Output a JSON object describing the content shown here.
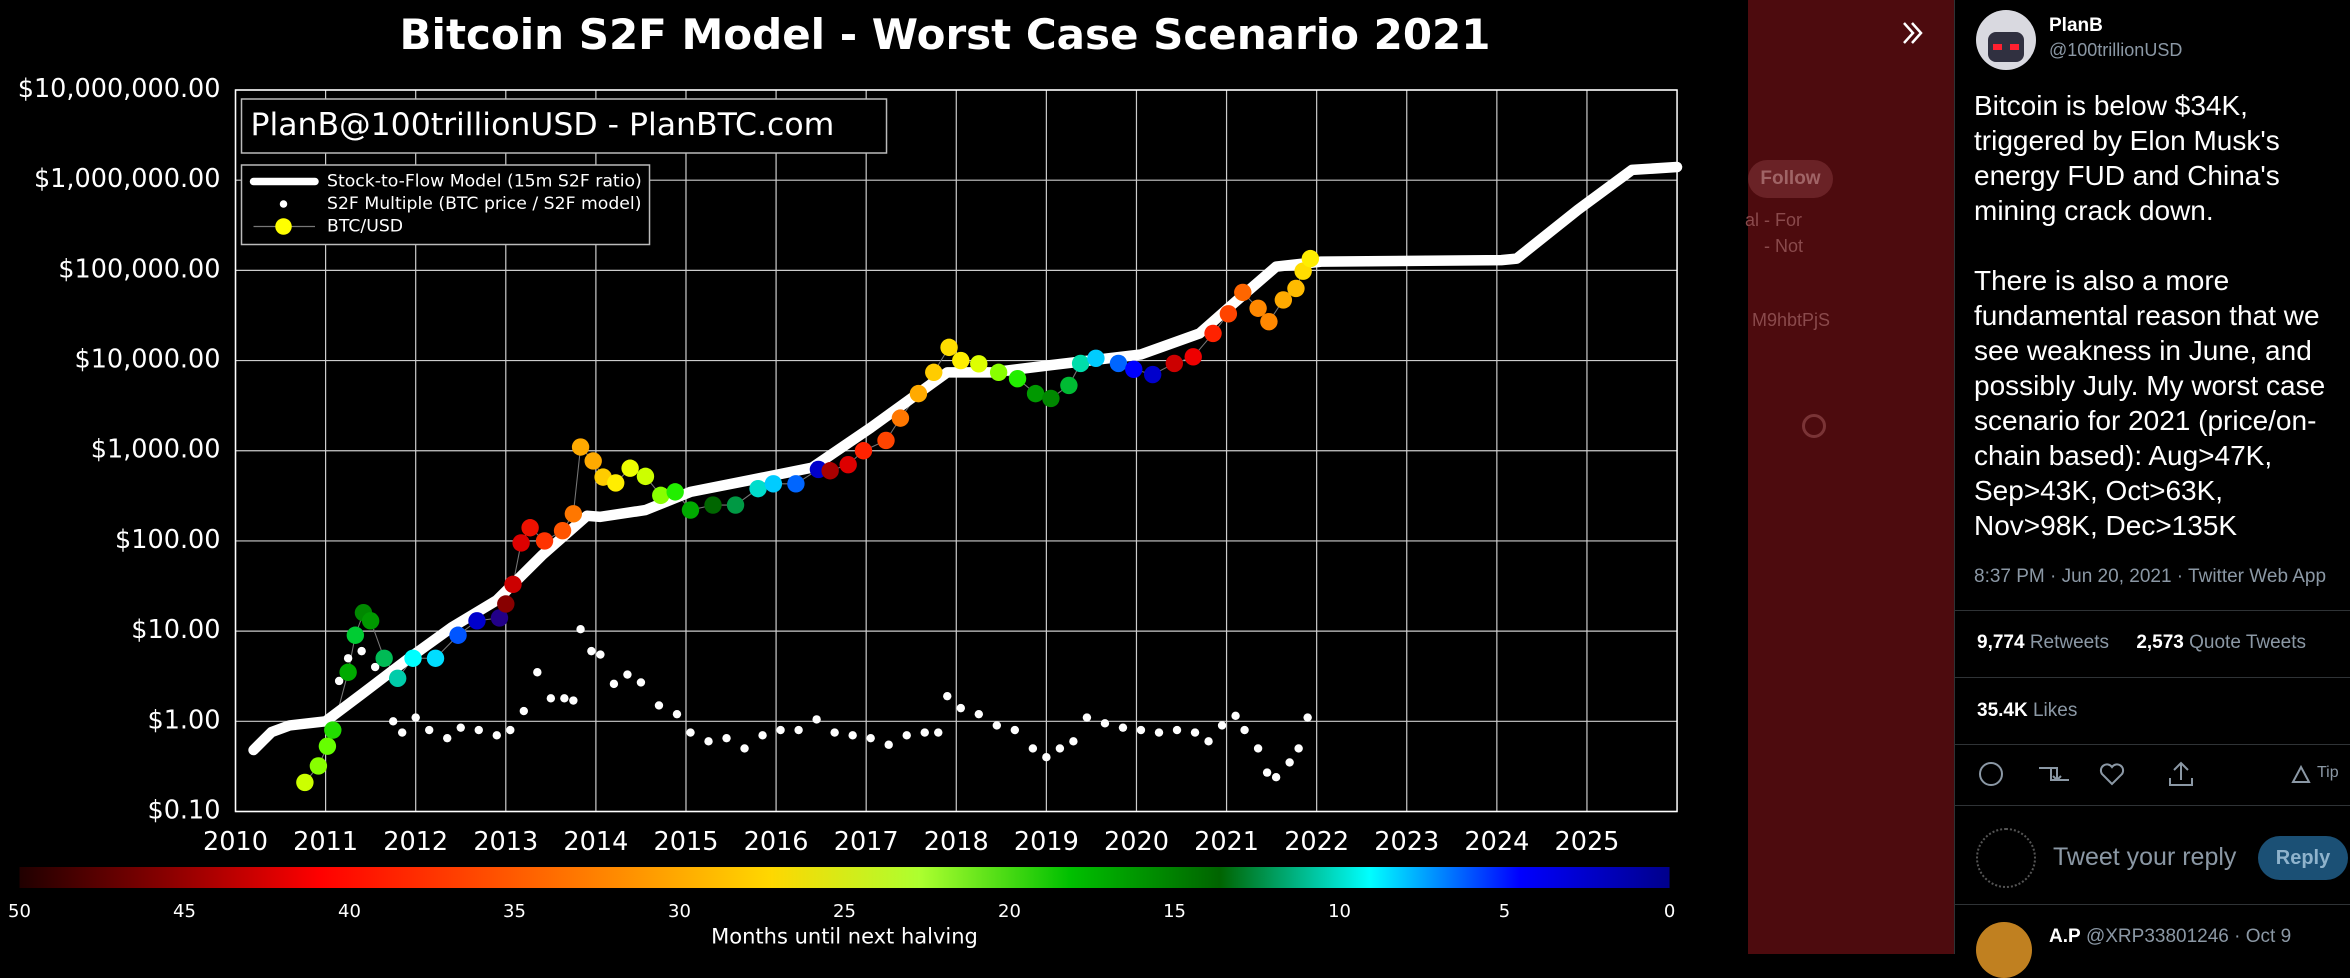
{
  "chart_data": {
    "type": "scatter",
    "title": "Bitcoin S2F Model - Worst Case Scenario 2021",
    "annotation": "PlanB@100trillionUSD - PlanBTC.com",
    "xlim": [
      2010,
      2026
    ],
    "xticks": [
      2010,
      2011,
      2012,
      2013,
      2014,
      2015,
      2016,
      2017,
      2018,
      2019,
      2020,
      2021,
      2022,
      2023,
      2024,
      2025
    ],
    "ylim": [
      0.1,
      10000000
    ],
    "yscale": "log",
    "yticks": [
      {
        "value": 0.1,
        "label": "$0.10"
      },
      {
        "value": 1,
        "label": "$1.00"
      },
      {
        "value": 10,
        "label": "$10.00"
      },
      {
        "value": 100,
        "label": "$100.00"
      },
      {
        "value": 1000,
        "label": "$1,000.00"
      },
      {
        "value": 10000,
        "label": "$10,000.00"
      },
      {
        "value": 100000,
        "label": "$100,000.00"
      },
      {
        "value": 1000000,
        "label": "$1,000,000.00"
      },
      {
        "value": 10000000,
        "label": "$10,000,000.00"
      }
    ],
    "grid": true,
    "legend": "upper left",
    "series": [
      {
        "name": "Stock-to-Flow Model (15m S2F ratio)",
        "color": "#ffffff",
        "x": [
          2010.2,
          2010.4,
          2010.6,
          2011.0,
          2011.4,
          2011.9,
          2012.4,
          2012.9,
          2013.4,
          2013.9,
          2014.05,
          2014.55,
          2015.05,
          2015.7,
          2016.4,
          2017.05,
          2017.9,
          2018.4,
          2019.05,
          2020.05,
          2020.7,
          2021.1,
          2021.55,
          2022.05,
          2024.05,
          2024.22,
          2024.9,
          2025.5,
          2026.0
        ],
        "values": [
          0.48,
          0.76,
          0.9,
          1.0,
          2.0,
          4.8,
          11,
          22,
          69,
          190,
          185,
          220,
          350,
          470,
          650,
          1800,
          7400,
          7400,
          8900,
          11700,
          20000,
          45000,
          110000,
          125000,
          130000,
          135000,
          470000,
          1300000,
          1400000
        ]
      },
      {
        "name": "S2F Multiple (BTC price / S2F model)",
        "color": "#ffffff",
        "x": [
          2011.15,
          2011.25,
          2011.4,
          2011.55,
          2011.75,
          2011.85,
          2012.0,
          2012.15,
          2012.35,
          2012.5,
          2012.7,
          2012.9,
          2013.05,
          2013.2,
          2013.35,
          2013.5,
          2013.65,
          2013.75,
          2013.83,
          2013.95,
          2014.05,
          2014.2,
          2014.35,
          2014.5,
          2014.7,
          2014.9,
          2015.05,
          2015.25,
          2015.45,
          2015.65,
          2015.85,
          2016.05,
          2016.25,
          2016.45,
          2016.65,
          2016.85,
          2017.05,
          2017.25,
          2017.45,
          2017.65,
          2017.8,
          2017.9,
          2018.05,
          2018.25,
          2018.45,
          2018.65,
          2018.85,
          2019.0,
          2019.15,
          2019.3,
          2019.45,
          2019.65,
          2019.85,
          2020.05,
          2020.25,
          2020.45,
          2020.65,
          2020.8,
          2020.95,
          2021.1,
          2021.2,
          2021.35,
          2021.45,
          2021.55,
          2021.7,
          2021.8,
          2021.9
        ],
        "values": [
          2.8,
          5,
          6,
          4,
          1,
          0.75,
          1.1,
          0.8,
          0.65,
          0.85,
          0.8,
          0.7,
          0.8,
          1.3,
          3.5,
          1.8,
          1.8,
          1.7,
          10.5,
          6,
          5.5,
          2.6,
          3.3,
          2.7,
          1.5,
          1.2,
          0.75,
          0.6,
          0.65,
          0.5,
          0.7,
          0.8,
          0.8,
          1.05,
          0.75,
          0.7,
          0.65,
          0.55,
          0.7,
          0.75,
          0.75,
          1.9,
          1.4,
          1.2,
          0.9,
          0.8,
          0.5,
          0.4,
          0.5,
          0.6,
          1.1,
          0.95,
          0.85,
          0.8,
          0.75,
          0.8,
          0.75,
          0.6,
          0.9,
          1.15,
          0.8,
          0.5,
          0.27,
          0.24,
          0.35,
          0.5,
          1.1
        ]
      },
      {
        "name": "BTC/USD",
        "color": "#ffff00",
        "line_color": "#777777",
        "x": [
          2010.77,
          2010.92,
          2011.02,
          2011.08,
          2011.25,
          2011.33,
          2011.42,
          2011.5,
          2011.65,
          2011.8,
          2011.97,
          2012.22,
          2012.47,
          2012.68,
          2012.93,
          2013.0,
          2013.08,
          2013.17,
          2013.27,
          2013.43,
          2013.63,
          2013.75,
          2013.83,
          2013.97,
          2014.08,
          2014.22,
          2014.38,
          2014.55,
          2014.72,
          2014.88,
          2015.05,
          2015.3,
          2015.55,
          2015.8,
          2015.97,
          2016.22,
          2016.47,
          2016.6,
          2016.8,
          2016.97,
          2017.22,
          2017.38,
          2017.58,
          2017.75,
          2017.92,
          2018.05,
          2018.25,
          2018.47,
          2018.68,
          2018.88,
          2019.05,
          2019.25,
          2019.38,
          2019.55,
          2019.8,
          2019.97,
          2020.18,
          2020.42,
          2020.63,
          2020.85,
          2021.02,
          2021.18,
          2021.35,
          2021.47,
          2021.63,
          2021.77,
          2021.85,
          2021.93
        ],
        "values": [
          0.21,
          0.32,
          0.53,
          0.8,
          3.5,
          9,
          16,
          13,
          5,
          3,
          5,
          5,
          9,
          13,
          14,
          20,
          33,
          95,
          140,
          100,
          130,
          200,
          1100,
          770,
          510,
          440,
          640,
          520,
          320,
          350,
          220,
          250,
          250,
          380,
          430,
          430,
          620,
          600,
          700,
          1000,
          1300,
          2300,
          4300,
          7400,
          14000,
          10000,
          9200,
          7400,
          6300,
          4300,
          3800,
          5300,
          9300,
          10600,
          9300,
          8000,
          7000,
          9300,
          11000,
          20000,
          33000,
          57000,
          38000,
          27000,
          47000,
          63000,
          98000,
          135000
        ],
        "colors": [
          "#ccff00",
          "#88ff00",
          "#66ff00",
          "#22dd00",
          "#00aa00",
          "#00cc33",
          "#008800",
          "#009900",
          "#00bb55",
          "#00ccaa",
          "#00ffff",
          "#00ddff",
          "#0055ff",
          "#0000cc",
          "#220088",
          "#880000",
          "#cc0000",
          "#dd0000",
          "#ee1100",
          "#ff3300",
          "#ff5500",
          "#ff7700",
          "#ffaa00",
          "#ffaa00",
          "#ffcc00",
          "#ffee00",
          "#eeff00",
          "#ccff00",
          "#88ff00",
          "#22ee00",
          "#00aa00",
          "#006600",
          "#009944",
          "#00ddcc",
          "#00ccff",
          "#0066ff",
          "#0000cc",
          "#aa0000",
          "#dd0000",
          "#ff2200",
          "#ff4400",
          "#ff7700",
          "#ffaa00",
          "#ffcc00",
          "#ffdd00",
          "#ffee00",
          "#ddff00",
          "#88ff00",
          "#22ee00",
          "#009900",
          "#008800",
          "#00bb33",
          "#00ddaa",
          "#00ccff",
          "#0066ff",
          "#0000ff",
          "#0000cc",
          "#cc0000",
          "#ee0000",
          "#ff2200",
          "#ff4400",
          "#ff6600",
          "#ff8800",
          "#ff8800",
          "#ffaa00",
          "#ffbb00",
          "#ffdd00",
          "#ffee00"
        ]
      }
    ],
    "colorbar": {
      "label": "Months until next halving",
      "lim": [
        50,
        0
      ],
      "ticks": [
        50,
        45,
        40,
        35,
        30,
        25,
        20,
        15,
        10,
        5,
        0
      ],
      "colors": [
        "#200000",
        "#8b0000",
        "#ff0000",
        "#ff4500",
        "#ff8c00",
        "#ffd700",
        "#adff2f",
        "#00c000",
        "#006400",
        "#00ffff",
        "#0000ff",
        "#00008b"
      ]
    }
  },
  "background_fragments": [
    "Follow",
    "al - For",
    "- Not",
    "M9hbtPjS"
  ],
  "tweet": {
    "name": "PlanB",
    "handle": "@100trillionUSD",
    "text": [
      "Bitcoin is below $34K, triggered by Elon Musk's energy FUD and China's mining crack down.",
      "There is also a more fundamental reason that we see weakness in June, and possibly July. My worst case scenario for 2021 (price/on-chain based): Aug>47K, Sep>43K, Oct>63K, Nov>98K, Dec>135K"
    ],
    "timestamp": "8:37 PM · Jun 20, 2021 · Twitter Web App",
    "retweets": "9,774",
    "retweets_label": "Retweets",
    "quotes": "2,573",
    "quotes_label": "Quote Tweets",
    "likes": "35.4K",
    "likes_label": "Likes",
    "tip": "Tip",
    "reply_placeholder": "Tweet your reply",
    "reply_button": "Reply",
    "next_reply": {
      "name": "A.P",
      "meta": "@XRP33801246 · Oct 9"
    }
  }
}
